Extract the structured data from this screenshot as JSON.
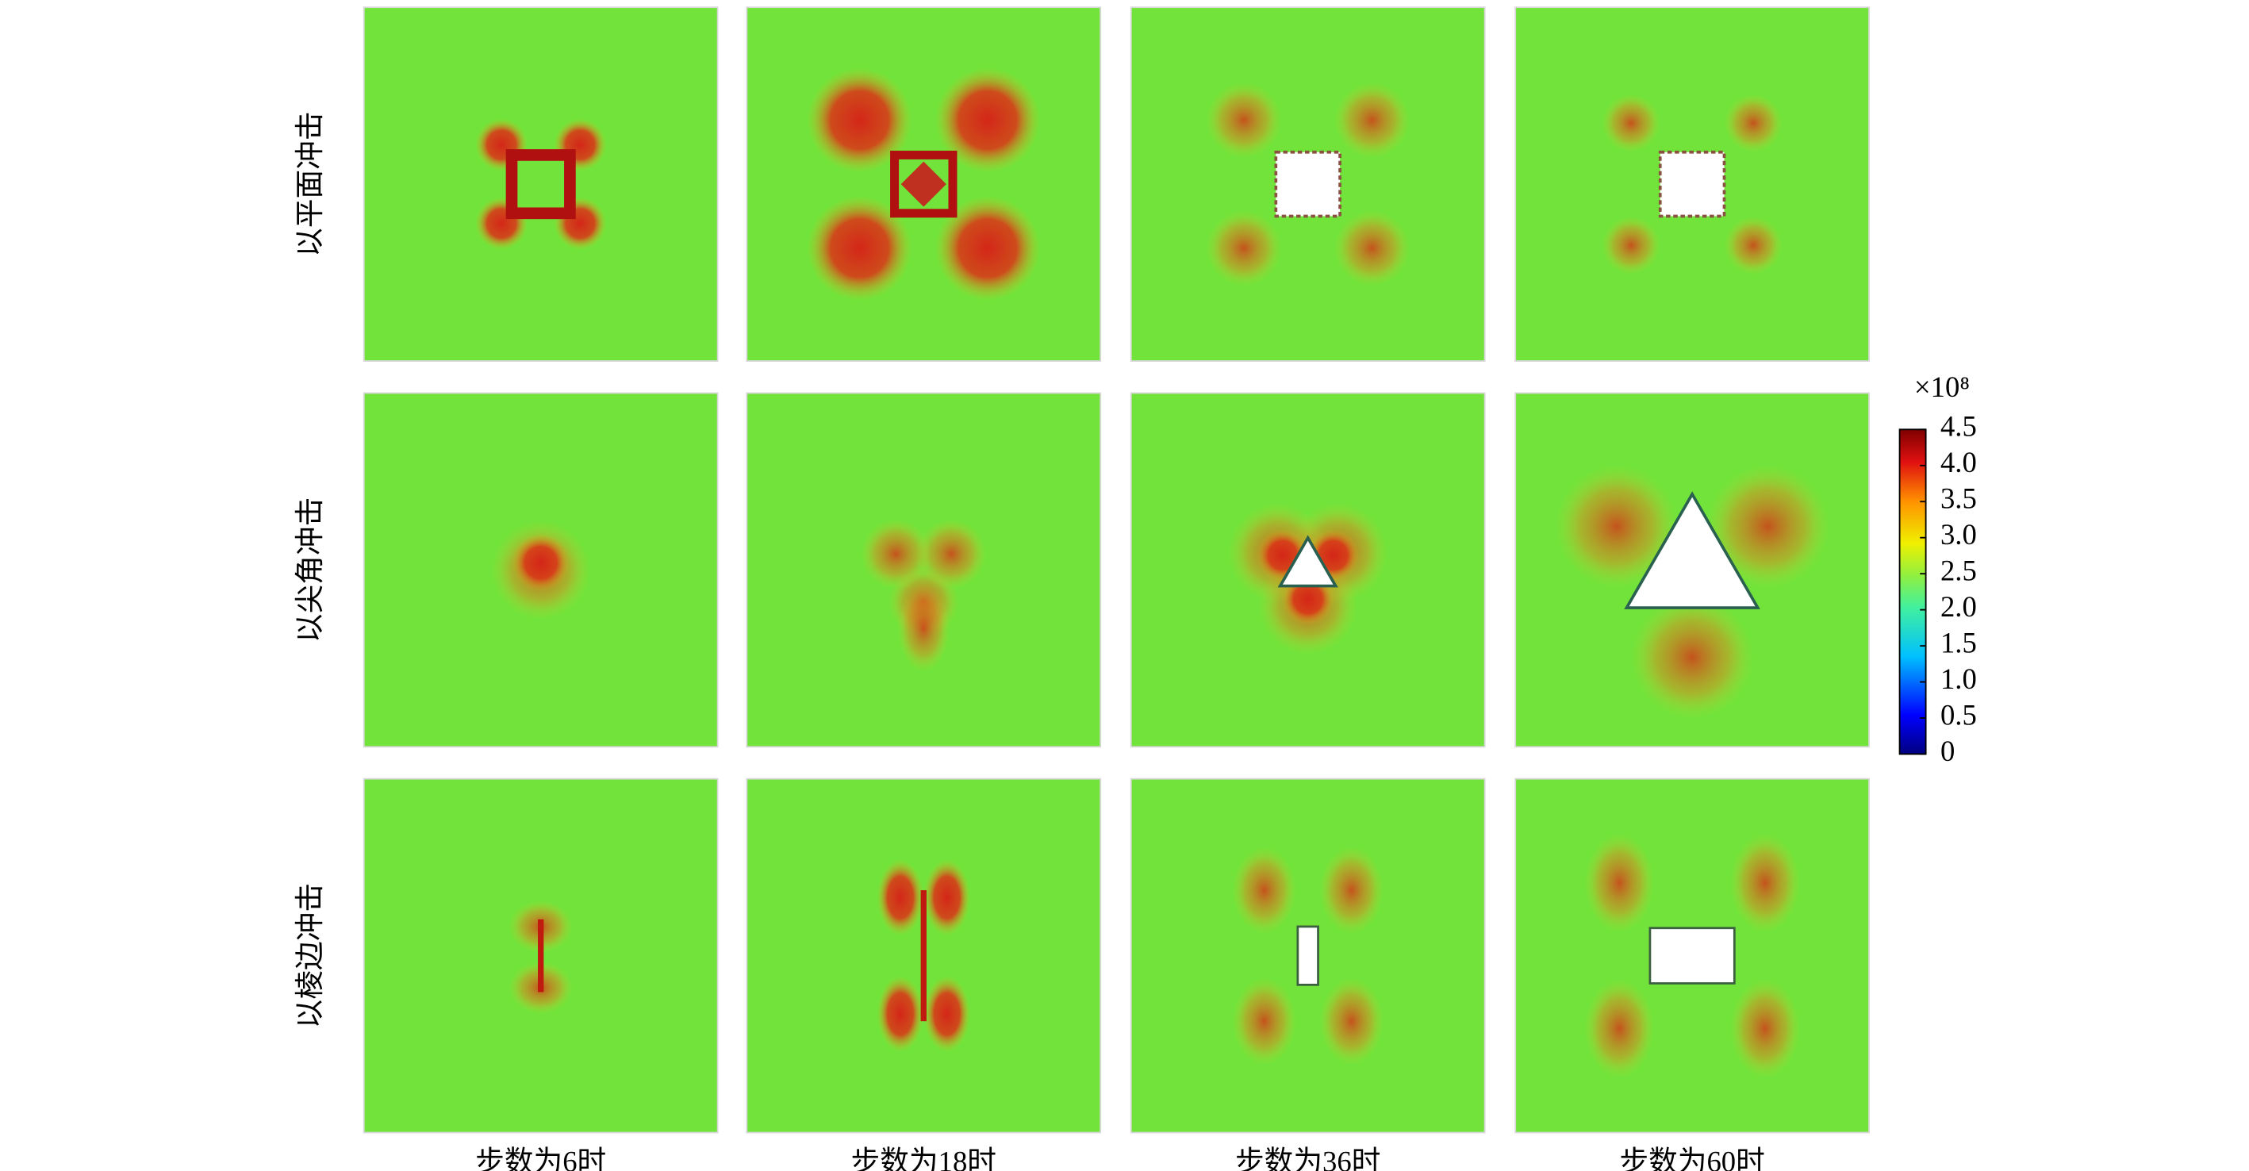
{
  "figure": {
    "row_labels": [
      "以平面冲击",
      "以尖角冲击",
      "以棱边冲击"
    ],
    "column_labels": [
      "步数为6时",
      "步数为18时",
      "步数为36时",
      "步数为60时"
    ],
    "colorbar": {
      "unit_label": "×10⁸",
      "ylim": [
        0,
        4.5
      ],
      "yticks": [
        0,
        0.5,
        {
          "value": 1,
          "label": "1.0"
        },
        1.5,
        {
          "value": 2,
          "label": "2.0"
        },
        2.5,
        {
          "value": 3,
          "label": "3.0"
        },
        3.5,
        {
          "value": 4,
          "label": "4.0"
        },
        4.5
      ]
    }
  }
}
